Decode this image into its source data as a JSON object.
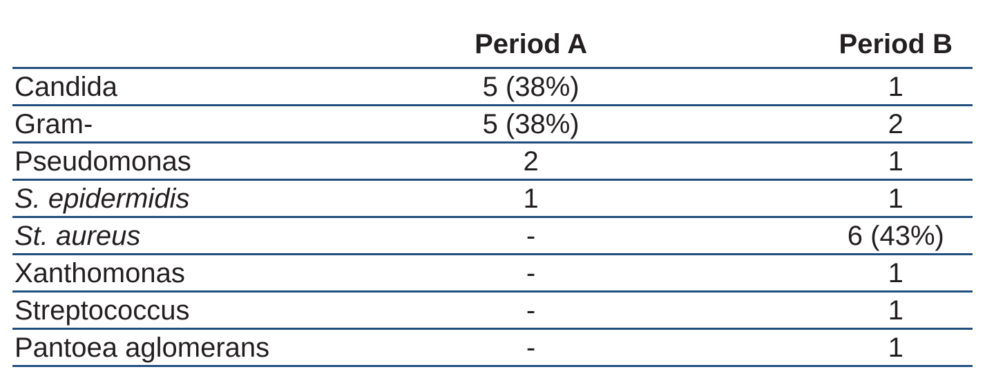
{
  "chart_data": {
    "type": "table",
    "title": "",
    "columns": [
      "",
      "Period A",
      "Period B"
    ],
    "rows": [
      {
        "name": "Candida",
        "italic": false,
        "period_a": "5 (38%)",
        "period_b": "1"
      },
      {
        "name": "Gram-",
        "italic": false,
        "period_a": "5 (38%)",
        "period_b": "2"
      },
      {
        "name": "Pseudomonas",
        "italic": false,
        "period_a": "2",
        "period_b": "1"
      },
      {
        "name": "S. epidermidis",
        "italic": true,
        "period_a": "1",
        "period_b": "1"
      },
      {
        "name": "St. aureus",
        "italic": true,
        "period_a": "-",
        "period_b": "6 (43%)"
      },
      {
        "name": "Xanthomonas",
        "italic": false,
        "period_a": "-",
        "period_b": "1"
      },
      {
        "name": "Streptococcus",
        "italic": false,
        "period_a": "-",
        "period_b": "1"
      },
      {
        "name": "Pantoea aglomerans",
        "italic": false,
        "period_a": "-",
        "period_b": "1"
      }
    ],
    "layout": {
      "grid": "horizontal rules only",
      "value_alignment": "center",
      "name_alignment": "left"
    }
  },
  "colors": {
    "rule_blue": "#1f4e7c",
    "rule_halo": "#a9bfda",
    "text": "#231f20",
    "background": "#ffffff"
  }
}
